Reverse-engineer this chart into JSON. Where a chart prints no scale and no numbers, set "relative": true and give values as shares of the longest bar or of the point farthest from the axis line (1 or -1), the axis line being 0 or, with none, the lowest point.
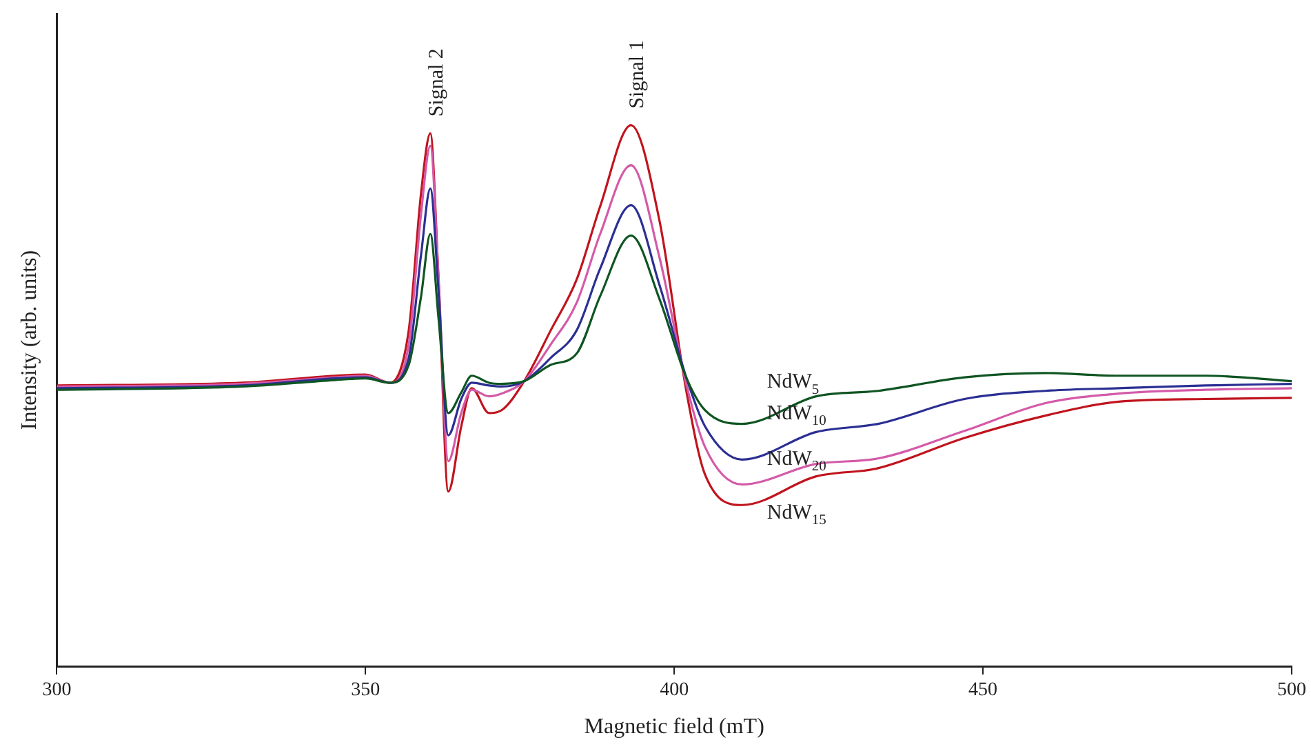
{
  "chart_data": {
    "type": "line",
    "relative": true,
    "xlabel": "Magnetic field (mT)",
    "ylabel": "Intensity (arb. units)",
    "x": [
      300,
      330,
      345,
      350,
      354,
      357,
      359,
      360.5,
      361.8,
      363.4,
      365.5,
      367.2,
      370,
      372,
      375.7,
      380,
      384.2,
      388,
      393,
      397.6,
      402,
      405,
      411,
      423,
      433,
      447,
      460,
      472,
      486,
      500
    ],
    "xlim": [
      300,
      500
    ],
    "xticks": [
      300,
      350,
      400,
      450,
      500
    ],
    "marker": "none",
    "line_style": "solid",
    "series": [
      {
        "name": "NdW$_{5}$",
        "color": "#0f5522",
        "values": [
          0.511,
          0.517,
          0.529,
          0.532,
          0.524,
          0.557,
          0.684,
          0.799,
          0.646,
          0.468,
          0.506,
          0.537,
          0.524,
          0.522,
          0.527,
          0.557,
          0.578,
          0.684,
          0.796,
          0.679,
          0.532,
          0.473,
          0.448,
          0.499,
          0.509,
          0.534,
          0.542,
          0.537,
          0.537,
          0.527
        ]
      },
      {
        "name": "NdW$_{10}$",
        "color": "#2b2f93",
        "values": [
          0.514,
          0.519,
          0.532,
          0.534,
          0.524,
          0.57,
          0.761,
          0.883,
          0.697,
          0.427,
          0.494,
          0.524,
          0.519,
          0.517,
          0.527,
          0.57,
          0.621,
          0.735,
          0.852,
          0.705,
          0.532,
          0.443,
          0.382,
          0.433,
          0.448,
          0.494,
          0.509,
          0.514,
          0.519,
          0.522
        ]
      },
      {
        "name": "NdW$_{20}$",
        "color": "#d45aa8",
        "values": [
          0.517,
          0.522,
          0.534,
          0.537,
          0.524,
          0.595,
          0.837,
          0.962,
          0.723,
          0.379,
          0.468,
          0.511,
          0.499,
          0.504,
          0.527,
          0.595,
          0.672,
          0.799,
          0.926,
          0.756,
          0.519,
          0.405,
          0.336,
          0.374,
          0.384,
          0.435,
          0.486,
          0.504,
          0.511,
          0.514
        ]
      },
      {
        "name": "NdW$_{15}$",
        "color": "#c0141e",
        "values": [
          0.519,
          0.524,
          0.537,
          0.539,
          0.524,
          0.621,
          0.875,
          0.985,
          0.723,
          0.323,
          0.443,
          0.514,
          0.468,
          0.473,
          0.527,
          0.621,
          0.715,
          0.85,
          1,
          0.824,
          0.506,
          0.354,
          0.298,
          0.351,
          0.366,
          0.422,
          0.463,
          0.489,
          0.494,
          0.496
        ]
      }
    ],
    "annotations": [
      {
        "text": "Signal 2",
        "x": 360.5,
        "y": 0.985
      },
      {
        "text": "Signal 1",
        "x": 393,
        "y": 1
      }
    ]
  }
}
